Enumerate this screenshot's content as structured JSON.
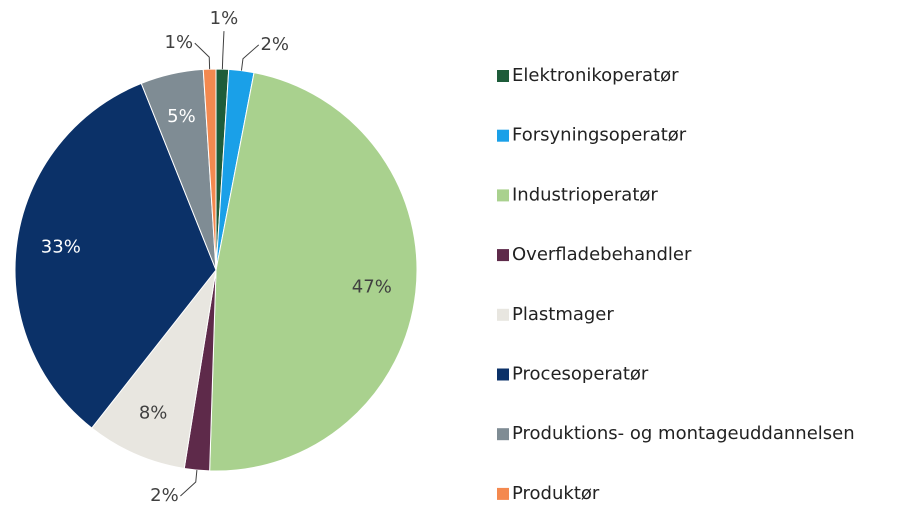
{
  "chart_data": {
    "type": "pie",
    "categories": [
      "Elektronikoperatør",
      "Forsyningsoperatør",
      "Industrioperatør",
      "Overfladebehandler",
      "Plastmager",
      "Procesoperatør",
      "Produktions- og montageuddannelsen",
      "Produktør"
    ],
    "values": [
      1,
      2,
      47,
      2,
      8,
      33,
      5,
      1
    ],
    "value_labels": [
      "1%",
      "2%",
      "47%",
      "2%",
      "8%",
      "33%",
      "5%",
      "1%"
    ],
    "colors": [
      "#1e5c3a",
      "#1aa0e8",
      "#a9d18e",
      "#5e2a4a",
      "#e8e6e0",
      "#0b3168",
      "#7f8c94",
      "#f4894f"
    ],
    "legend": "right"
  }
}
